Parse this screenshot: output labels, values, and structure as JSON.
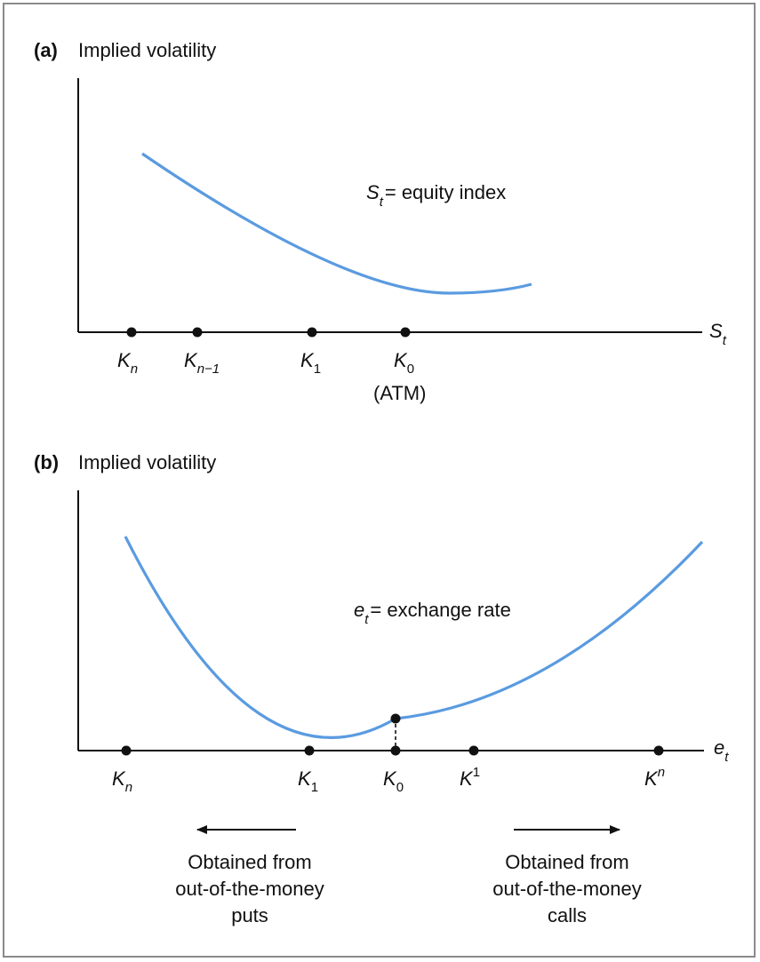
{
  "colors": {
    "curve": "#5a9be0",
    "axis": "#111111",
    "frame": "#8a8a8a"
  },
  "panel_a": {
    "tag": "(a)",
    "y_label": "Implied volatility",
    "x_label": {
      "main": "S",
      "sub": "t"
    },
    "curve_label": {
      "main": "S",
      "sub": "t",
      "rest": "= equity index"
    },
    "strikes": [
      {
        "main": "K",
        "sub": "n"
      },
      {
        "main": "K",
        "sub": "n−1"
      },
      {
        "main": "K",
        "sub": "1"
      },
      {
        "main": "K",
        "sub": "0"
      }
    ],
    "atm_label": "(ATM)"
  },
  "panel_b": {
    "tag": "(b)",
    "y_label": "Implied volatility",
    "x_label": {
      "main": "e",
      "sub": "t"
    },
    "curve_label": {
      "main": "e",
      "sub": "t",
      "rest": "= exchange rate"
    },
    "strikes": [
      {
        "main": "K",
        "sub": "n"
      },
      {
        "main": "K",
        "sub": "1"
      },
      {
        "main": "K",
        "sub": "0"
      },
      {
        "main": "K",
        "sup": "1"
      },
      {
        "main": "K",
        "sup": "n"
      }
    ],
    "left_note": [
      "Obtained from",
      "out-of-the-money",
      "puts"
    ],
    "right_note": [
      "Obtained from",
      "out-of-the-money",
      "calls"
    ]
  }
}
